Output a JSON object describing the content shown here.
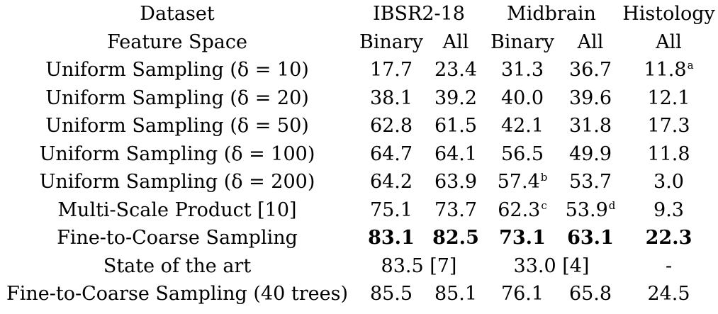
{
  "header": {
    "dataset_label": "Dataset",
    "datasets": [
      "IBSR2-18",
      "Midbrain",
      "Histology"
    ],
    "feature_space_label": "Feature Space",
    "feature_spaces": [
      "Binary",
      "All",
      "Binary",
      "All",
      "All"
    ]
  },
  "rows": [
    {
      "label": "Uniform Sampling (δ = 10)",
      "values": [
        "17.7",
        "23.4",
        "31.3",
        "36.7",
        "11.8"
      ],
      "notes": [
        "",
        "",
        "",
        "",
        "a"
      ]
    },
    {
      "label": "Uniform Sampling (δ = 20)",
      "values": [
        "38.1",
        "39.2",
        "40.0",
        "39.6",
        "12.1"
      ],
      "notes": [
        "",
        "",
        "",
        "",
        ""
      ]
    },
    {
      "label": "Uniform Sampling (δ = 50)",
      "values": [
        "62.8",
        "61.5",
        "42.1",
        "31.8",
        "17.3"
      ],
      "notes": [
        "",
        "",
        "",
        "",
        ""
      ]
    },
    {
      "label": "Uniform Sampling (δ = 100)",
      "values": [
        "64.7",
        "64.1",
        "56.5",
        "49.9",
        "11.8"
      ],
      "notes": [
        "",
        "",
        "",
        "",
        ""
      ]
    },
    {
      "label": "Uniform Sampling (δ = 200)",
      "values": [
        "64.2",
        "63.9",
        "57.4",
        "53.7",
        "3.0"
      ],
      "notes": [
        "",
        "",
        "b",
        "",
        ""
      ]
    },
    {
      "label": "Multi-Scale Product [10]",
      "values": [
        "75.1",
        "73.7",
        "62.3",
        "53.9",
        "9.3"
      ],
      "notes": [
        "",
        "",
        "c",
        "d",
        ""
      ]
    },
    {
      "label": "Fine-to-Coarse Sampling",
      "values": [
        "83.1",
        "82.5",
        "73.1",
        "63.1",
        "22.3"
      ],
      "notes": [
        "",
        "",
        "",
        "",
        ""
      ],
      "bold": true
    }
  ],
  "state_of_art": {
    "label": "State of the art",
    "ibsr": "83.5 [7]",
    "midbrain": "33.0 [4]",
    "histology": "-"
  },
  "forty_trees": {
    "label": "Fine-to-Coarse Sampling (40 trees)",
    "values": [
      "85.5",
      "85.1",
      "76.1",
      "65.8",
      "24.5"
    ]
  }
}
